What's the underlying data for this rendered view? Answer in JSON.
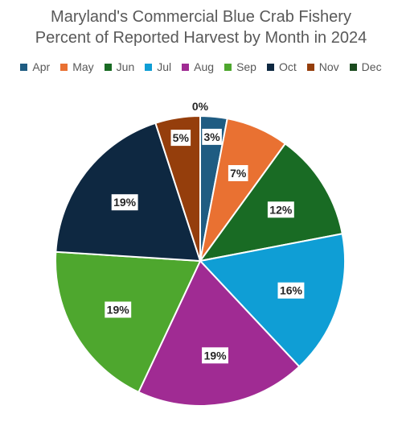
{
  "chart_data": {
    "type": "pie",
    "title_lines": [
      "Maryland's Commercial Blue Crab Fishery",
      "Percent of Reported Harvest by Month in 2024"
    ],
    "categories": [
      "Apr",
      "May",
      "Jun",
      "Jul",
      "Aug",
      "Sep",
      "Oct",
      "Nov",
      "Dec"
    ],
    "values": [
      3,
      7,
      12,
      16,
      19,
      19,
      19,
      5,
      0
    ],
    "data_labels": [
      "3%",
      "7%",
      "12%",
      "16%",
      "19%",
      "19%",
      "19%",
      "5%",
      "0%"
    ],
    "colors": [
      "#1f5c82",
      "#e97132",
      "#196b24",
      "#0f9ed5",
      "#a02b93",
      "#4ea72e",
      "#0e2841",
      "#953e0c",
      "#1b4b1f"
    ],
    "legend_position": "top",
    "start_angle": "12 o'clock, clockwise"
  }
}
